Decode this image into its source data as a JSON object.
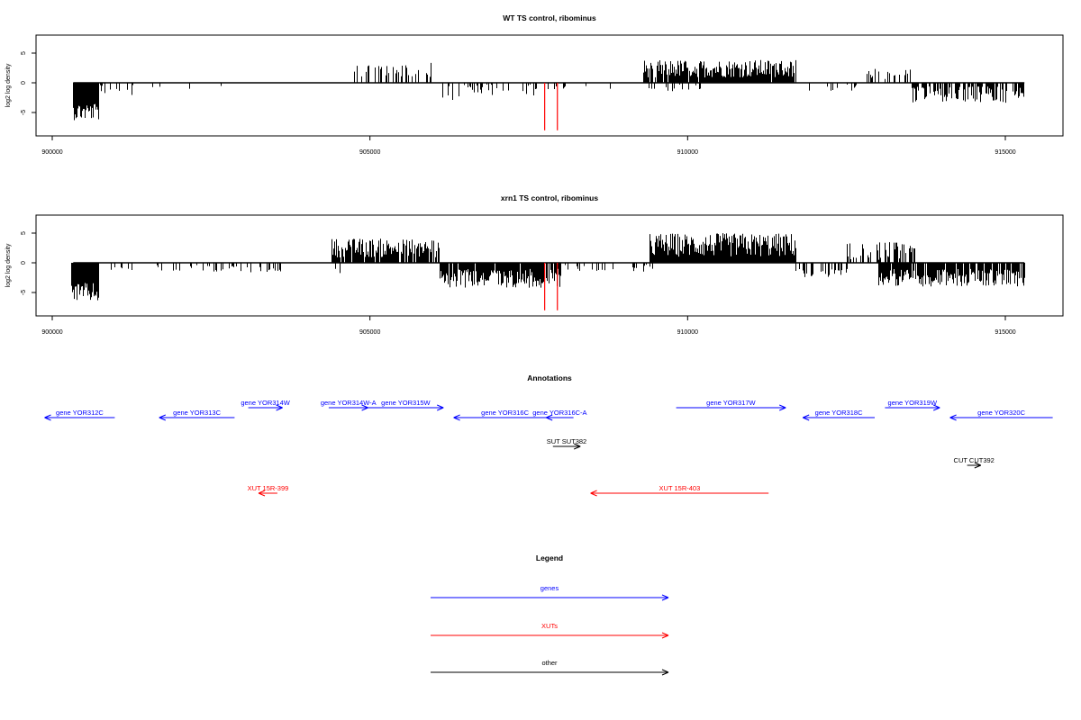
{
  "colors": {
    "genes": "#0000ff",
    "XUTs": "#ff0000",
    "other": "#000000",
    "axis": "#000000"
  },
  "chart_data": [
    {
      "type": "bar",
      "title": "WT TS control, ribominus",
      "ylabel": "log2 log density",
      "xlim": [
        900000,
        915000
      ],
      "ylim": [
        -8,
        7
      ],
      "yticks": [
        -5,
        0,
        5
      ],
      "xticks": [
        900000,
        905000,
        910000,
        915000
      ],
      "xtick_labels": [
        "900000",
        "905000",
        "910000",
        "915000"
      ],
      "ytick_labels": [
        "-5",
        "0",
        "5"
      ],
      "grid": false,
      "red_markers_x": [
        907750,
        907950
      ],
      "profile": [
        {
          "from": 900330,
          "to": 900720,
          "sign": -1,
          "mean": 4.8,
          "amp": 1.5,
          "density": 1.0
        },
        {
          "from": 900740,
          "to": 901300,
          "sign": -1,
          "mean": 1.0,
          "amp": 1.2,
          "density": 0.25
        },
        {
          "from": 901500,
          "to": 902700,
          "sign": -1,
          "mean": 0.9,
          "amp": 0.5,
          "density": 0.08
        },
        {
          "from": 904700,
          "to": 905400,
          "sign": 1,
          "mean": 2.0,
          "amp": 1.0,
          "density": 0.35
        },
        {
          "from": 905400,
          "to": 906000,
          "sign": 1,
          "mean": 2.2,
          "amp": 1.2,
          "density": 0.45
        },
        {
          "from": 906050,
          "to": 906400,
          "sign": -1,
          "mean": 1.6,
          "amp": 1.5,
          "density": 0.35
        },
        {
          "from": 906400,
          "to": 907700,
          "sign": -1,
          "mean": 1.2,
          "amp": 1.0,
          "density": 0.25
        },
        {
          "from": 907700,
          "to": 909000,
          "sign": -1,
          "mean": 0.7,
          "amp": 0.4,
          "density": 0.06
        },
        {
          "from": 909300,
          "to": 911700,
          "sign": 1,
          "mean": 2.4,
          "amp": 1.5,
          "density": 0.95
        },
        {
          "from": 909300,
          "to": 910200,
          "sign": -1,
          "mean": 0.9,
          "amp": 0.8,
          "density": 0.2
        },
        {
          "from": 911700,
          "to": 912700,
          "sign": -1,
          "mean": 0.8,
          "amp": 0.6,
          "density": 0.15
        },
        {
          "from": 912800,
          "to": 913500,
          "sign": 1,
          "mean": 1.4,
          "amp": 1.0,
          "density": 0.35
        },
        {
          "from": 913500,
          "to": 915300,
          "sign": -1,
          "mean": 2.0,
          "amp": 1.4,
          "density": 0.65
        }
      ]
    },
    {
      "type": "bar",
      "title": "xrn1 TS control, ribominus",
      "ylabel": "log2 log density",
      "xlim": [
        900000,
        915000
      ],
      "ylim": [
        -8,
        7
      ],
      "yticks": [
        -5,
        0,
        5
      ],
      "xticks": [
        900000,
        905000,
        910000,
        915000
      ],
      "xtick_labels": [
        "900000",
        "905000",
        "910000",
        "915000"
      ],
      "ytick_labels": [
        "-5",
        "0",
        "5"
      ],
      "grid": false,
      "red_markers_x": [
        907750,
        907950
      ],
      "profile": [
        {
          "from": 900300,
          "to": 900720,
          "sign": -1,
          "mean": 5.0,
          "amp": 1.6,
          "density": 1.0
        },
        {
          "from": 900740,
          "to": 903600,
          "sign": -1,
          "mean": 1.0,
          "amp": 0.6,
          "density": 0.18
        },
        {
          "from": 904400,
          "to": 906100,
          "sign": 1,
          "mean": 2.5,
          "amp": 1.6,
          "density": 0.85
        },
        {
          "from": 904400,
          "to": 904600,
          "sign": -1,
          "mean": 1.5,
          "amp": 0.5,
          "density": 0.2
        },
        {
          "from": 906100,
          "to": 908000,
          "sign": -1,
          "mean": 2.6,
          "amp": 1.6,
          "density": 0.9
        },
        {
          "from": 908000,
          "to": 909500,
          "sign": -1,
          "mean": 0.9,
          "amp": 0.6,
          "density": 0.15
        },
        {
          "from": 909400,
          "to": 911700,
          "sign": 1,
          "mean": 3.0,
          "amp": 2.0,
          "density": 1.0
        },
        {
          "from": 911700,
          "to": 912500,
          "sign": -1,
          "mean": 1.5,
          "amp": 1.0,
          "density": 0.4
        },
        {
          "from": 912500,
          "to": 913600,
          "sign": 1,
          "mean": 2.0,
          "amp": 1.5,
          "density": 0.6
        },
        {
          "from": 913000,
          "to": 915300,
          "sign": -1,
          "mean": 2.5,
          "amp": 1.5,
          "density": 0.85
        }
      ]
    },
    {
      "type": "diagram",
      "title": "Annotations",
      "features": [
        {
          "label": "gene YOR312C",
          "kind": "genes",
          "strand": "-",
          "start": 900250,
          "end": 902300,
          "row": 1
        },
        {
          "label": "gene YOR313C",
          "kind": "genes",
          "strand": "-",
          "start": 903600,
          "end": 905800,
          "row": 1
        },
        {
          "label": "gene YOR314W",
          "kind": "genes",
          "strand": "+",
          "start": 906200,
          "end": 907200,
          "row": 0
        },
        {
          "label": "gene YOR314W-A",
          "kind": "genes",
          "strand": "+",
          "start": 908550,
          "end": 909700,
          "row": 0
        },
        {
          "label": "gene YOR315W",
          "kind": "genes",
          "strand": "+",
          "start": 909700,
          "end": 911900,
          "row": 0
        },
        {
          "label": "gene YOR316C",
          "kind": "genes",
          "strand": "-",
          "start": 912200,
          "end": 915200,
          "row": 1
        },
        {
          "label": "gene YOR316C-A",
          "kind": "genes",
          "strand": "-",
          "start": 914900,
          "end": 915700,
          "row": 1
        },
        {
          "label": "gene YOR317W",
          "kind": "genes",
          "strand": "+",
          "start": 918700,
          "end": 921900,
          "row": 0
        },
        {
          "label": "gene YOR318C",
          "kind": "genes",
          "strand": "-",
          "start": 922400,
          "end": 924500,
          "row": 1
        },
        {
          "label": "gene YOR319W",
          "kind": "genes",
          "strand": "+",
          "start": 924800,
          "end": 926400,
          "row": 0
        },
        {
          "label": "gene YOR320C",
          "kind": "genes",
          "strand": "-",
          "start": 926700,
          "end": 929700,
          "row": 1
        },
        {
          "label": "SUT SUT382",
          "kind": "other",
          "strand": "+",
          "start": 915100,
          "end": 915900,
          "row": 2
        },
        {
          "label": "CUT CUT392",
          "kind": "other",
          "strand": "+",
          "start": 927200,
          "end": 927600,
          "row": 3
        },
        {
          "label": "XUT 15R-399",
          "kind": "XUTs",
          "strand": "-",
          "start": 906500,
          "end": 907050,
          "row": 4
        },
        {
          "label": "XUT 15R-403",
          "kind": "XUTs",
          "strand": "-",
          "start": 916200,
          "end": 921400,
          "row": 4
        }
      ]
    },
    {
      "type": "legend",
      "title": "Legend",
      "entries": [
        {
          "label": "genes",
          "kind": "genes"
        },
        {
          "label": "XUTs",
          "kind": "XUTs"
        },
        {
          "label": "other",
          "kind": "other"
        }
      ]
    }
  ]
}
